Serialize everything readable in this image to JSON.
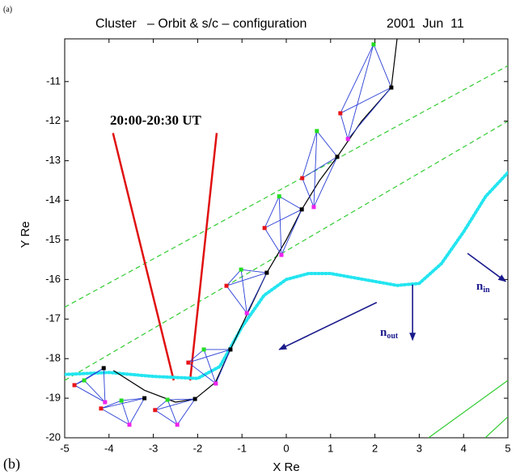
{
  "chart_data": {
    "type": "orbit",
    "panel_top": "(a)",
    "panel_bottom": "(b)",
    "title": "Cluster   – Orbit & s/c – configuration",
    "date": "2001  Jun  11",
    "xlabel": "X Re",
    "ylabel": "Y Re",
    "annotation": "20:00-20:30 UT",
    "xlim": [
      -5,
      5
    ],
    "ylim": [
      -20,
      -9.92
    ],
    "xticks": [
      -5,
      -4,
      -3,
      -2,
      -1,
      0,
      1,
      2,
      3,
      4,
      5
    ],
    "yticks": [
      -20,
      -19,
      -18,
      -17,
      -16,
      -15,
      -14,
      -13,
      -12,
      -11
    ],
    "orbit": {
      "color": "#000000",
      "x": [
        -3.9,
        -3.2,
        -2.5,
        -2.06,
        -1.6,
        -1.26,
        -0.85,
        -0.44,
        0.0,
        0.35,
        0.75,
        1.15,
        1.7,
        2.37,
        2.5
      ],
      "y": [
        -18.3,
        -18.8,
        -19.1,
        -19.02,
        -18.6,
        -17.77,
        -16.8,
        -15.83,
        -15.0,
        -14.23,
        -13.5,
        -12.9,
        -12.0,
        -11.15,
        -9.92
      ]
    },
    "edge_color": "#2a3fd6",
    "spacecraft": [
      {
        "color": "#000000",
        "x": [
          2.37,
          1.15,
          0.35,
          -0.44,
          -1.26,
          -2.06,
          -4.12,
          -3.2
        ],
        "y": [
          -11.15,
          -12.9,
          -14.23,
          -15.83,
          -17.77,
          -19.02,
          -18.24,
          -19.0
        ]
      },
      {
        "color": "#e8141a",
        "x": [
          1.22,
          0.36,
          -0.49,
          -1.35,
          -2.21,
          -2.96,
          -4.78,
          -4.18
        ],
        "y": [
          -11.8,
          -13.44,
          -14.7,
          -16.16,
          -18.1,
          -19.3,
          -18.67,
          -19.26
        ]
      },
      {
        "color": "#22dd22",
        "x": [
          1.97,
          0.69,
          -0.16,
          -1.02,
          -1.86,
          -2.68,
          -4.56,
          -3.72
        ],
        "y": [
          -10.06,
          -12.25,
          -13.9,
          -15.75,
          -17.77,
          -19.04,
          -18.55,
          -19.06
        ]
      },
      {
        "color": "#ee22ee",
        "x": [
          1.39,
          0.62,
          -0.11,
          -0.89,
          -1.59,
          -2.46,
          -4.09,
          -3.54
        ],
        "y": [
          -12.45,
          -14.17,
          -15.38,
          -16.85,
          -18.63,
          -19.67,
          -19.1,
          -19.67
        ]
      }
    ],
    "magnetopause": {
      "color": "#22e5f0",
      "x": [
        -5,
        -4,
        -3,
        -2,
        -1.5,
        -1,
        -0.5,
        0,
        0.5,
        1,
        1.5,
        2,
        2.5,
        3,
        3.5,
        4,
        4.5,
        5
      ],
      "y": [
        -18.4,
        -18.35,
        -18.45,
        -18.5,
        -18.2,
        -17.2,
        -16.4,
        -16.0,
        -15.85,
        -15.85,
        -15.95,
        -16.05,
        -16.15,
        -16.1,
        -15.6,
        -14.8,
        -13.9,
        -13.3
      ]
    },
    "lines": [
      {
        "color": "#33cc33",
        "style": "dashed",
        "x": [
          -5,
          5
        ],
        "y": [
          -16.7,
          -10.6
        ]
      },
      {
        "color": "#33cc33",
        "style": "dashed",
        "x": [
          -5,
          5
        ],
        "y": [
          -18.55,
          -12.0
        ]
      },
      {
        "color": "#33cc33",
        "style": "solid",
        "x": [
          3.21,
          5
        ],
        "y": [
          -20,
          -18.55
        ]
      },
      {
        "color": "#33cc33",
        "style": "solid",
        "x": [
          4.49,
          5
        ],
        "y": [
          -20,
          -19.47
        ]
      },
      {
        "color": "#e01010",
        "style": "thick",
        "x": [
          -3.91,
          -2.54
        ],
        "y": [
          -12.3,
          -18.55
        ]
      },
      {
        "color": "#e01010",
        "style": "thick",
        "x": [
          -1.57,
          -2.17
        ],
        "y": [
          -12.3,
          -18.55
        ]
      }
    ],
    "arrows": [
      {
        "color": "#1a1a8c",
        "x": [
          4.09,
          4.95
        ],
        "y": [
          -15.34,
          -16.05
        ]
      },
      {
        "color": "#1a1a8c",
        "x": [
          2.85,
          2.85
        ],
        "y": [
          -16.13,
          -17.53
        ]
      },
      {
        "color": "#1a1a8c",
        "x": [
          2.04,
          -0.16
        ],
        "y": [
          -16.58,
          -17.77
        ]
      }
    ],
    "n_in": {
      "base": "n",
      "sub": "in"
    },
    "n_out": {
      "base": "n",
      "sub": "out"
    }
  }
}
